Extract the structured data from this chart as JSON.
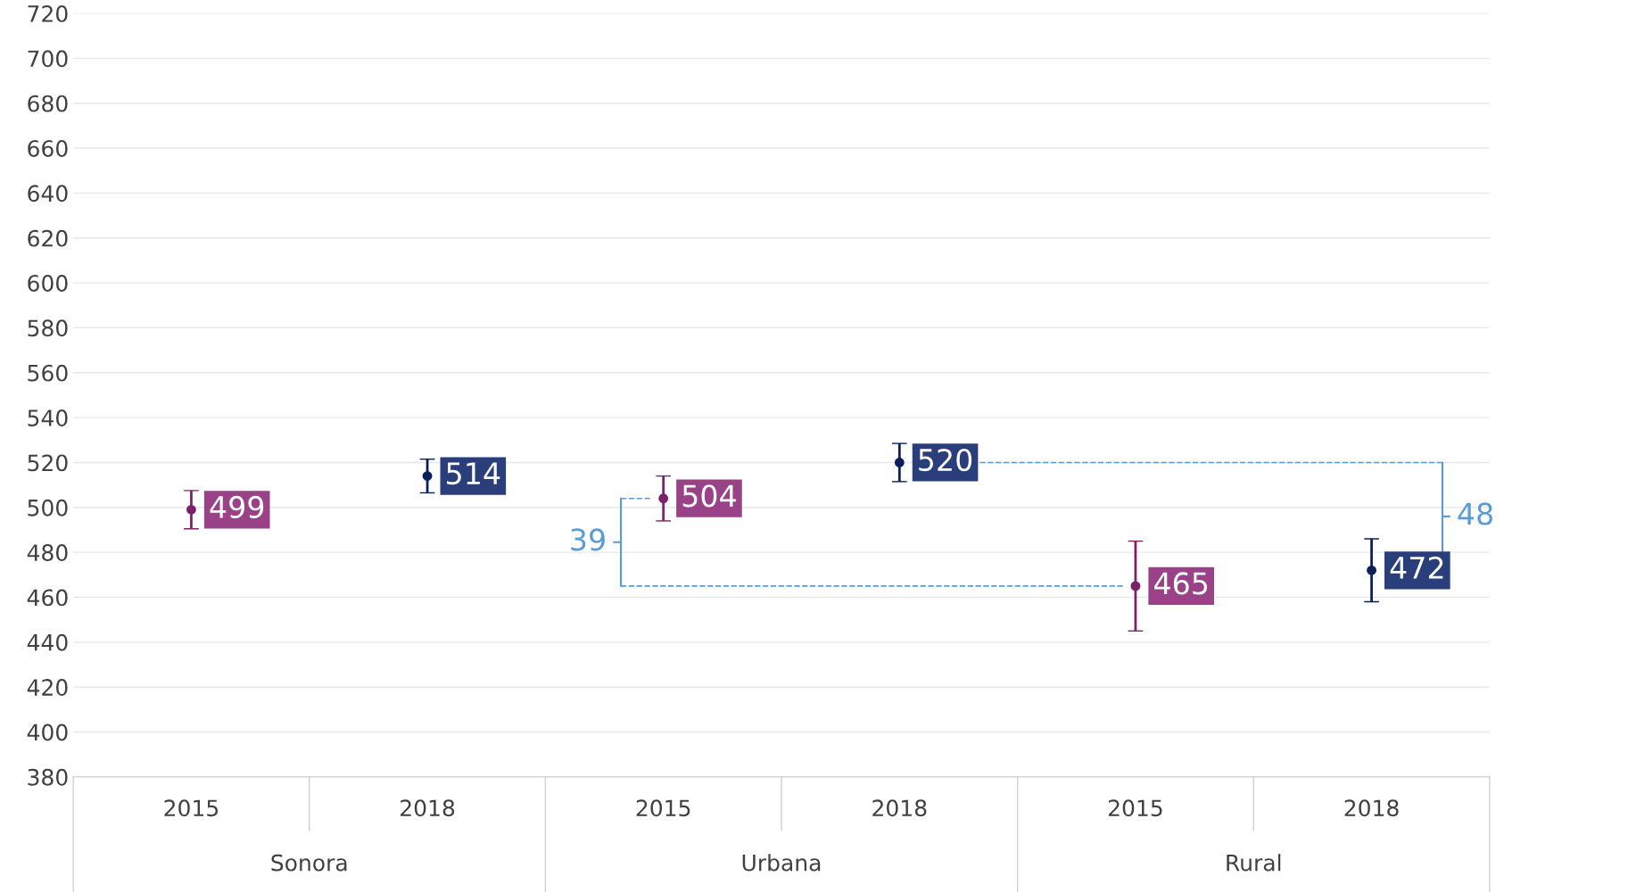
{
  "chart_data": {
    "type": "scatter",
    "categories": [
      "2015",
      "2018",
      "2015",
      "2018",
      "2015",
      "2018"
    ],
    "annotations": [
      "Sonora",
      "Urbana",
      "Rural",
      "39",
      "48"
    ],
    "values": [
      499,
      514,
      504,
      520,
      465,
      472
    ],
    "errors": [
      8.5,
      7.5,
      10,
      8.5,
      20,
      14
    ],
    "colors": [
      "#7b2369",
      "#0b1f5c",
      "#7b2369",
      "#0b1f5c",
      "#7b2369",
      "#0b1f5c"
    ],
    "data_labels": true,
    "ylim": [
      380,
      720
    ],
    "yticks": [
      380,
      400,
      420,
      440,
      460,
      480,
      500,
      520,
      540,
      560,
      580,
      600,
      620,
      640,
      660,
      680,
      700,
      720
    ],
    "grid": "y",
    "marker": "circle"
  }
}
